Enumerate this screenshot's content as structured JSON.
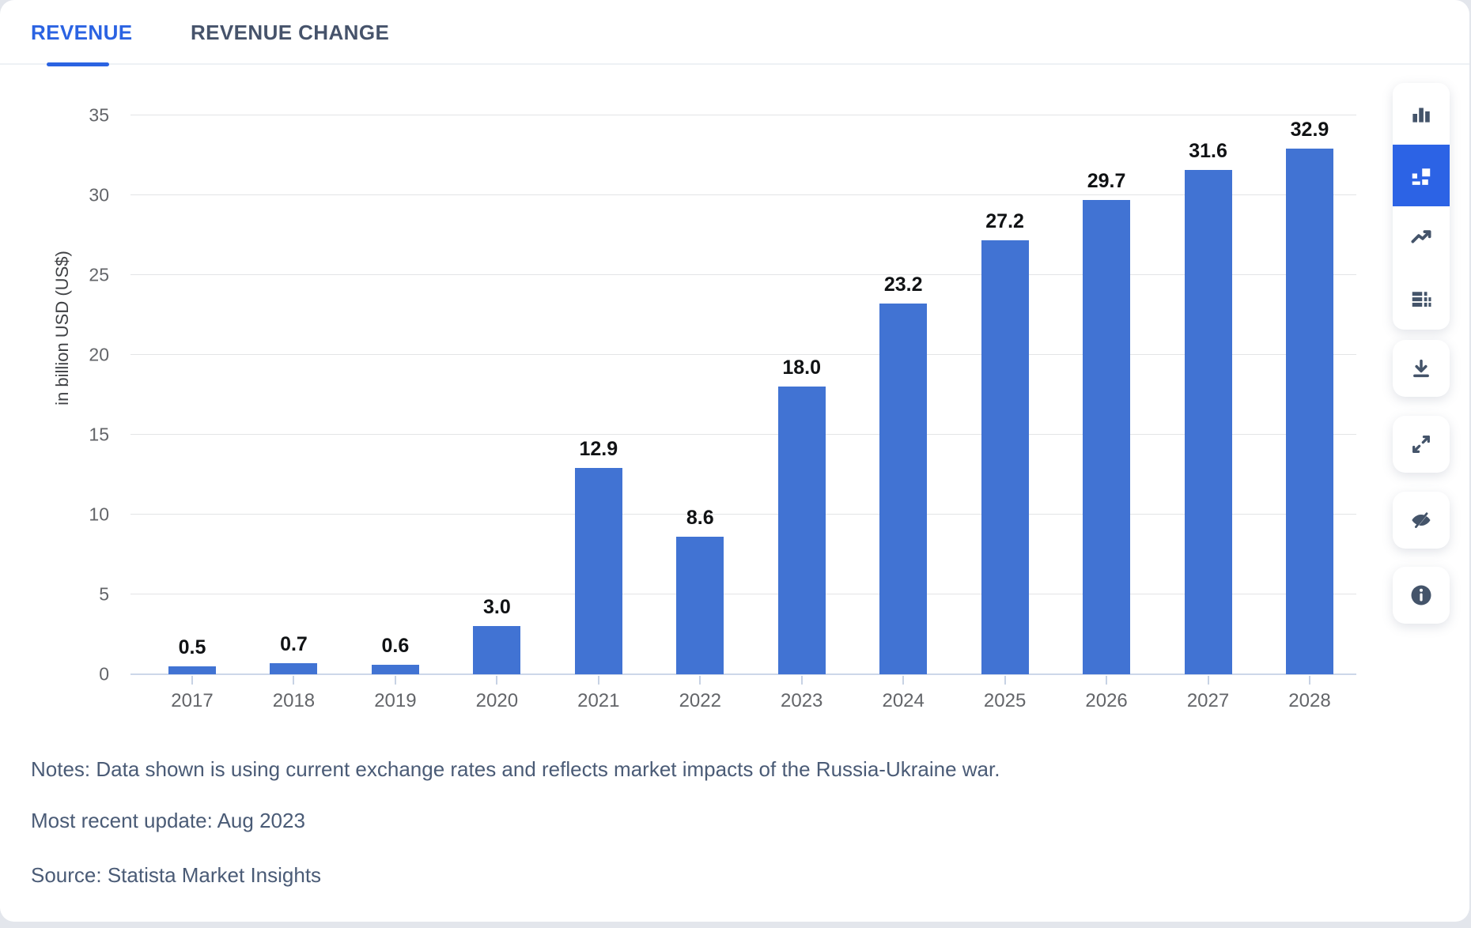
{
  "tabs": [
    {
      "label": "REVENUE",
      "active": true
    },
    {
      "label": "REVENUE CHANGE",
      "active": false
    }
  ],
  "chart_data": {
    "type": "bar",
    "categories": [
      "2017",
      "2018",
      "2019",
      "2020",
      "2021",
      "2022",
      "2023",
      "2024",
      "2025",
      "2026",
      "2027",
      "2028"
    ],
    "values": [
      0.5,
      0.7,
      0.6,
      3.0,
      12.9,
      8.6,
      18.0,
      23.2,
      27.2,
      29.7,
      31.6,
      32.9
    ],
    "value_labels": [
      "0.5",
      "0.7",
      "0.6",
      "3.0",
      "12.9",
      "8.6",
      "18.0",
      "23.2",
      "27.2",
      "29.7",
      "31.6",
      "32.9"
    ],
    "title": "",
    "xlabel": "",
    "ylabel": "in billion USD (US$)",
    "ylim": [
      0,
      35
    ],
    "yticks": [
      0,
      5,
      10,
      15,
      20,
      25,
      30,
      35
    ],
    "grid": true,
    "legend": false,
    "bar_color": "#4173d3"
  },
  "toolbar": {
    "accent_color": "#2c63e5",
    "icon_color": "#44546a",
    "chart_types": [
      {
        "icon": "bar-chart-icon",
        "active": false
      },
      {
        "icon": "mixed-chart-icon",
        "active": true
      },
      {
        "icon": "line-chart-icon",
        "active": false
      },
      {
        "icon": "table-view-icon",
        "active": false
      }
    ],
    "actions": [
      {
        "icon": "download-icon"
      },
      {
        "icon": "fullscreen-icon"
      },
      {
        "icon": "hide-eye-off-icon"
      },
      {
        "icon": "info-icon"
      }
    ]
  },
  "footer": {
    "notes_line": "Notes: Data shown is using current exchange rates and reflects market impacts of the Russia-Ukraine war.",
    "update_line": "Most recent update: Aug 2023",
    "source_line": "Source: Statista Market Insights"
  }
}
